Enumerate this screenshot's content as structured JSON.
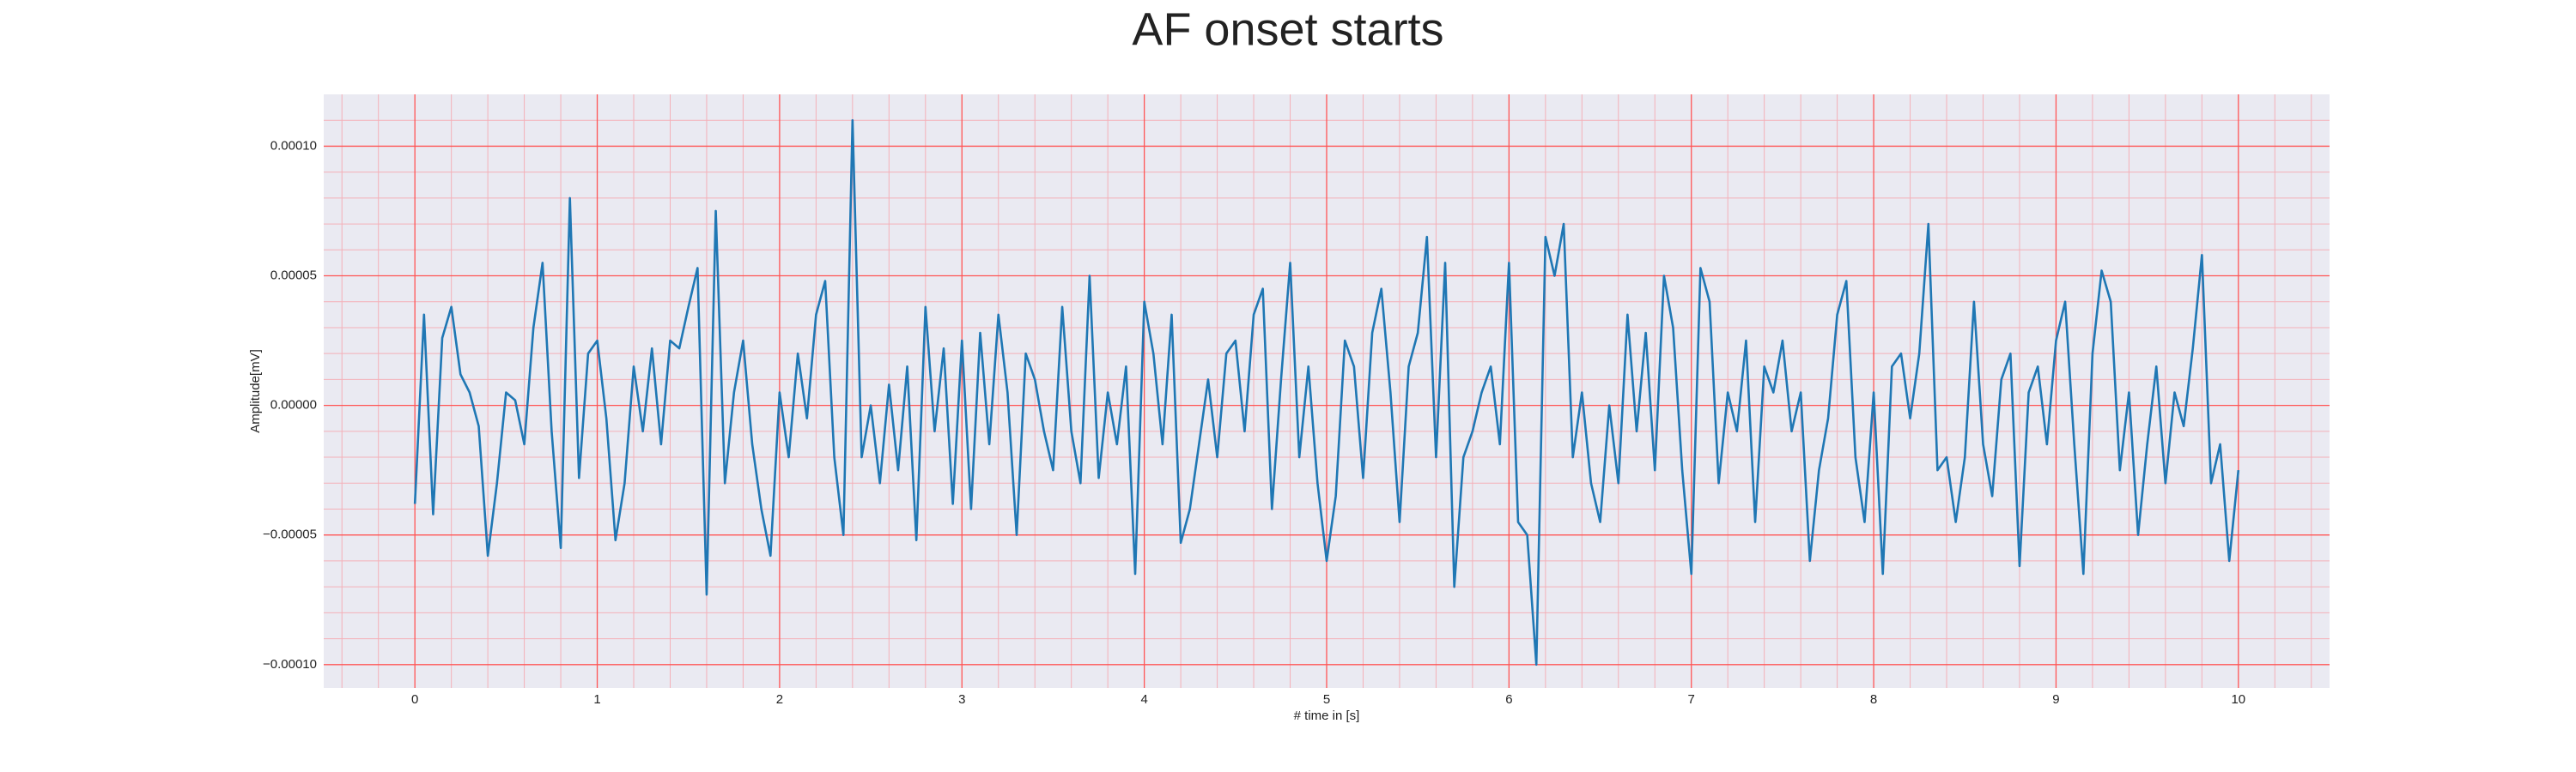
{
  "chart_data": {
    "type": "line",
    "title": "AF onset starts",
    "xlabel": "# time in [s]",
    "ylabel": "Amplitude[mV]",
    "color": "#1f77b4",
    "grid": true,
    "minor_grid": true,
    "xlim": [
      -0.5,
      10.5
    ],
    "ylim": [
      -0.000109,
      0.00012
    ],
    "xticks": [
      0,
      1,
      2,
      3,
      4,
      5,
      6,
      7,
      8,
      9,
      10
    ],
    "yticks": [
      {
        "value": -0.0001,
        "label": "−0.00010"
      },
      {
        "value": -5e-05,
        "label": "−0.00005"
      },
      {
        "value": 0,
        "label": "0.00000"
      },
      {
        "value": 5e-05,
        "label": "0.00005"
      },
      {
        "value": 0.0001,
        "label": "0.00010"
      }
    ],
    "x": [
      0,
      0.05,
      0.1,
      0.15,
      0.2,
      0.25,
      0.3,
      0.35,
      0.4,
      0.45,
      0.5,
      0.55,
      0.6,
      0.65,
      0.7,
      0.75,
      0.8,
      0.85,
      0.9,
      0.95,
      1,
      1.05,
      1.1,
      1.15,
      1.2,
      1.25,
      1.3,
      1.35,
      1.4,
      1.45,
      1.5,
      1.55,
      1.6,
      1.65,
      1.7,
      1.75,
      1.8,
      1.85,
      1.9,
      1.95,
      2,
      2.05,
      2.1,
      2.15,
      2.2,
      2.25,
      2.3,
      2.35,
      2.4,
      2.45,
      2.5,
      2.55,
      2.6,
      2.65,
      2.7,
      2.75,
      2.8,
      2.85,
      2.9,
      2.95,
      3,
      3.05,
      3.1,
      3.15,
      3.2,
      3.25,
      3.3,
      3.35,
      3.4,
      3.45,
      3.5,
      3.55,
      3.6,
      3.65,
      3.7,
      3.75,
      3.8,
      3.85,
      3.9,
      3.95,
      4,
      4.05,
      4.1,
      4.15,
      4.2,
      4.25,
      4.3,
      4.35,
      4.4,
      4.45,
      4.5,
      4.55,
      4.6,
      4.65,
      4.7,
      4.75,
      4.8,
      4.85,
      4.9,
      4.95,
      5,
      5.05,
      5.1,
      5.15,
      5.2,
      5.25,
      5.3,
      5.35,
      5.4,
      5.45,
      5.5,
      5.55,
      5.6,
      5.65,
      5.7,
      5.75,
      5.8,
      5.85,
      5.9,
      5.95,
      6,
      6.05,
      6.1,
      6.15,
      6.2,
      6.25,
      6.3,
      6.35,
      6.4,
      6.45,
      6.5,
      6.55,
      6.6,
      6.65,
      6.7,
      6.75,
      6.8,
      6.85,
      6.9,
      6.95,
      7,
      7.05,
      7.1,
      7.15,
      7.2,
      7.25,
      7.3,
      7.35,
      7.4,
      7.45,
      7.5,
      7.55,
      7.6,
      7.65,
      7.7,
      7.75,
      7.8,
      7.85,
      7.9,
      7.95,
      8,
      8.05,
      8.1,
      8.15,
      8.2,
      8.25,
      8.3,
      8.35,
      8.4,
      8.45,
      8.5,
      8.55,
      8.6,
      8.65,
      8.7,
      8.75,
      8.8,
      8.85,
      8.9,
      8.95,
      9,
      9.05,
      9.1,
      9.15,
      9.2,
      9.25,
      9.3,
      9.35,
      9.4,
      9.45,
      9.5,
      9.55,
      9.6,
      9.65,
      9.7,
      9.75,
      9.8,
      9.85,
      9.9,
      9.95,
      10
    ],
    "values": [
      -3.8e-05,
      3.5e-05,
      -4.2e-05,
      2.6e-05,
      3.8e-05,
      1.2e-05,
      5e-06,
      -8e-06,
      -5.8e-05,
      -3e-05,
      5e-06,
      2e-06,
      -1.5e-05,
      3e-05,
      5.5e-05,
      -1e-05,
      -5.5e-05,
      8e-05,
      -2.8e-05,
      2e-05,
      2.5e-05,
      -5e-06,
      -5.2e-05,
      -3e-05,
      1.5e-05,
      -1e-05,
      2.2e-05,
      -1.5e-05,
      2.5e-05,
      2.2e-05,
      3.8e-05,
      5.3e-05,
      -7.3e-05,
      7.5e-05,
      -3e-05,
      5e-06,
      2.5e-05,
      -1.5e-05,
      -4e-05,
      -5.8e-05,
      5e-06,
      -2e-05,
      2e-05,
      -5e-06,
      3.5e-05,
      4.8e-05,
      -2e-05,
      -5e-05,
      0.00011,
      -2e-05,
      0,
      -3e-05,
      8e-06,
      -2.5e-05,
      1.5e-05,
      -5.2e-05,
      3.8e-05,
      -1e-05,
      2.2e-05,
      -3.8e-05,
      2.5e-05,
      -4e-05,
      2.8e-05,
      -1.5e-05,
      3.5e-05,
      5e-06,
      -5e-05,
      2e-05,
      1e-05,
      -1e-05,
      -2.5e-05,
      3.8e-05,
      -1e-05,
      -3e-05,
      5e-05,
      -2.8e-05,
      5e-06,
      -1.5e-05,
      1.5e-05,
      -6.5e-05,
      4e-05,
      2e-05,
      -1.5e-05,
      3.5e-05,
      -5.3e-05,
      -4e-05,
      -1.5e-05,
      1e-05,
      -2e-05,
      2e-05,
      2.5e-05,
      -1e-05,
      3.5e-05,
      4.5e-05,
      -4e-05,
      1e-05,
      5.5e-05,
      -2e-05,
      1.5e-05,
      -3e-05,
      -6e-05,
      -3.5e-05,
      2.5e-05,
      1.5e-05,
      -2.8e-05,
      2.8e-05,
      4.5e-05,
      5e-06,
      -4.5e-05,
      1.5e-05,
      2.8e-05,
      6.5e-05,
      -2e-05,
      5.5e-05,
      -7e-05,
      -2e-05,
      -1e-05,
      5e-06,
      1.5e-05,
      -1.5e-05,
      5.5e-05,
      -4.5e-05,
      -5e-05,
      -0.0001,
      6.5e-05,
      5e-05,
      7e-05,
      -2e-05,
      5e-06,
      -3e-05,
      -4.5e-05,
      0,
      -3e-05,
      3.5e-05,
      -1e-05,
      2.8e-05,
      -2.5e-05,
      5e-05,
      3e-05,
      -2.5e-05,
      -6.5e-05,
      5.3e-05,
      4e-05,
      -3e-05,
      5e-06,
      -1e-05,
      2.5e-05,
      -4.5e-05,
      1.5e-05,
      5e-06,
      2.5e-05,
      -1e-05,
      5e-06,
      -6e-05,
      -2.5e-05,
      -5e-06,
      3.5e-05,
      4.8e-05,
      -2e-05,
      -4.5e-05,
      5e-06,
      -6.5e-05,
      1.5e-05,
      2e-05,
      -5e-06,
      2e-05,
      7e-05,
      -2.5e-05,
      -2e-05,
      -4.5e-05,
      -2e-05,
      4e-05,
      -1.5e-05,
      -3.5e-05,
      1e-05,
      2e-05,
      -6.2e-05,
      5e-06,
      1.5e-05,
      -1.5e-05,
      2.5e-05,
      4e-05,
      -1.5e-05,
      -6.5e-05,
      2e-05,
      5.2e-05,
      4e-05,
      -2.5e-05,
      5e-06,
      -5e-05,
      -1.5e-05,
      1.5e-05,
      -3e-05,
      5e-06,
      -8e-06,
      2.2e-05,
      5.8e-05,
      -3e-05,
      -1.5e-05,
      -6e-05,
      -2.5e-05
    ]
  }
}
